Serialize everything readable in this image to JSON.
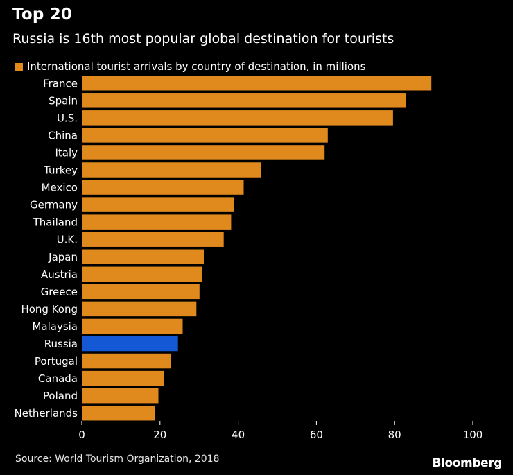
{
  "header": {
    "title": "Top 20",
    "subtitle": "Russia is 16th most popular global destination for tourists"
  },
  "footer": {
    "source": "Source: World Tourism Organization, 2018",
    "logo": "Bloomberg"
  },
  "colors": {
    "bar": "#e08a1e",
    "highlight": "#1558d6",
    "background": "#000000",
    "text": "#ffffff"
  },
  "chart_data": {
    "type": "bar",
    "orientation": "horizontal",
    "legend": "International tourist arrivals by country of destination, in millions",
    "legend_position": "top-left",
    "categories": [
      "France",
      "Spain",
      "U.S.",
      "China",
      "Italy",
      "Turkey",
      "Mexico",
      "Germany",
      "Thailand",
      "U.K.",
      "Japan",
      "Austria",
      "Greece",
      "Hong Kong",
      "Malaysia",
      "Russia",
      "Portugal",
      "Canada",
      "Poland",
      "Netherlands"
    ],
    "values": [
      89.4,
      82.8,
      79.6,
      62.9,
      62.1,
      45.8,
      41.4,
      38.9,
      38.2,
      36.3,
      31.2,
      30.8,
      30.1,
      29.3,
      25.8,
      24.6,
      22.8,
      21.1,
      19.6,
      18.8
    ],
    "highlight_category": "Russia",
    "xlim": [
      0,
      100
    ],
    "xticks": [
      0,
      20,
      40,
      60,
      80,
      100
    ],
    "grid": false
  }
}
